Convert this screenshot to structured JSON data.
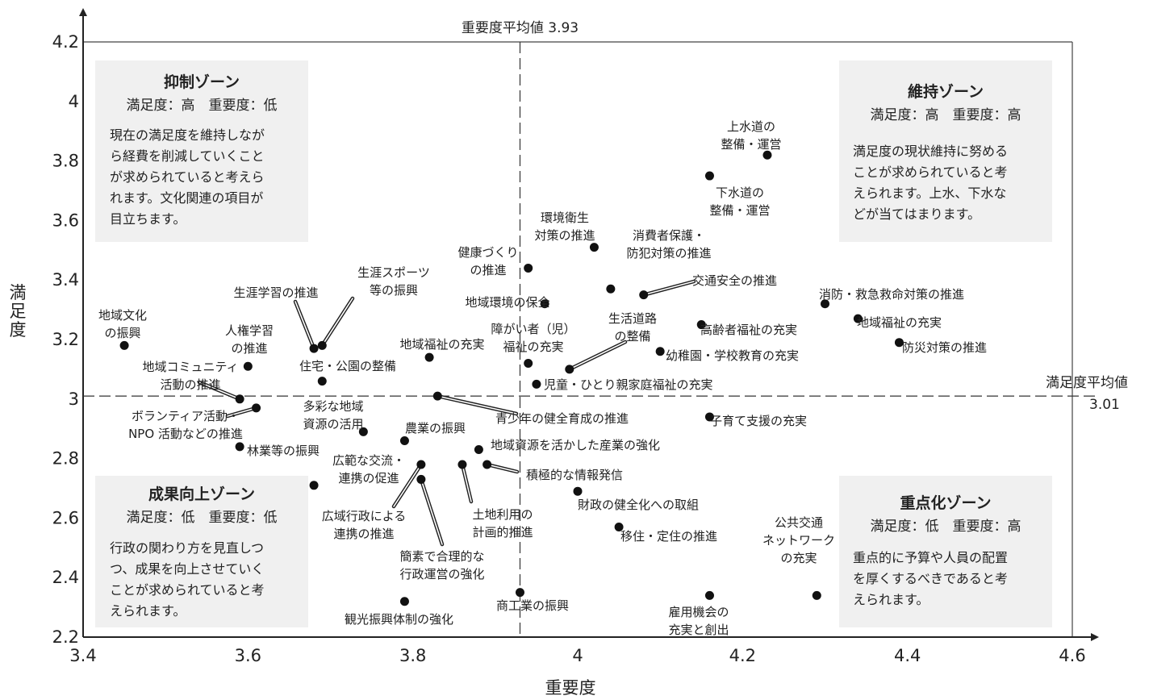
{
  "chart_data": {
    "type": "scatter",
    "xlabel": "重要度",
    "ylabel": "満足度",
    "xlim": [
      3.4,
      4.6
    ],
    "ylim": [
      2.2,
      4.2
    ],
    "xticks": [
      "3.4",
      "3.6",
      "3.8",
      "4",
      "4.2",
      "4.4",
      "4.6"
    ],
    "yticks": [
      "2.2",
      "2.4",
      "2.6",
      "2.8",
      "3",
      "3.2",
      "3.4",
      "3.6",
      "3.8",
      "4",
      "4.2"
    ],
    "averages": {
      "importance": {
        "label": "重要度平均値",
        "value_text": "3.93",
        "value": 3.93
      },
      "satisfaction": {
        "label": "満足度平均値",
        "value_text": "3.01",
        "value": 3.01
      }
    },
    "zones": [
      {
        "name": "抑制ゾーン",
        "sub": "満足度：高　重要度：低",
        "desc": [
          "現在の満足度を維持しなが",
          "ら経費を削減していくこと",
          "が求められていると考えら",
          "れます。文化関連の項目が",
          "目立ちます。"
        ]
      },
      {
        "name": "維持ゾーン",
        "sub": "満足度：高　重要度：高",
        "desc": [
          "満足度の現状維持に努める",
          "ことが求められていると考",
          "えられます。上水、下水な",
          "どが当てはまります。"
        ]
      },
      {
        "name": "成果向上ゾーン",
        "sub": "満足度：低　重要度：低",
        "desc": [
          "行政の関わり方を見直しつ",
          "つ、成果を向上させていく",
          "ことが求められていると考",
          "えられます。"
        ]
      },
      {
        "name": "重点化ゾーン",
        "sub": "満足度：低　重要度：高",
        "desc": [
          "重点的に予算や人員の配置",
          "を厚くするべきであると考",
          "えられます。"
        ]
      }
    ],
    "points": [
      {
        "label": [
          "上水道の",
          "整備・運営"
        ],
        "x": 4.23,
        "y": 3.82
      },
      {
        "label": [
          "下水道の",
          "整備・運営"
        ],
        "x": 4.16,
        "y": 3.75
      },
      {
        "label": [
          "環境衛生",
          "対策の推進"
        ],
        "x": 4.02,
        "y": 3.51
      },
      {
        "label": [
          "健康づくり",
          "の推進"
        ],
        "x": 3.94,
        "y": 3.44
      },
      {
        "label": [
          "消費者保護・",
          "防犯対策の推進"
        ],
        "x": 4.04,
        "y": 3.37
      },
      {
        "label": [
          "交通安全の推進"
        ],
        "x": 4.08,
        "y": 3.35
      },
      {
        "label": [
          "地域環境の保全"
        ],
        "x": 3.96,
        "y": 3.32
      },
      {
        "label": [
          "消防・救急救命対策の推進"
        ],
        "x": 4.3,
        "y": 3.32
      },
      {
        "label": [
          "地域福祉の充実"
        ],
        "x": 4.34,
        "y": 3.27
      },
      {
        "label": [
          "高齢者福祉の充実"
        ],
        "x": 4.15,
        "y": 3.25
      },
      {
        "label": [
          "防災対策の推進"
        ],
        "x": 4.39,
        "y": 3.19
      },
      {
        "label": [
          "幼稚園・学校教育の充実"
        ],
        "x": 4.1,
        "y": 3.16
      },
      {
        "label": [
          "生活道路",
          "の整備"
        ],
        "x": 3.99,
        "y": 3.1
      },
      {
        "label": [
          "障がい者（児）",
          "福祉の充実"
        ],
        "x": 3.94,
        "y": 3.12
      },
      {
        "label": [
          "児童・ひとり親家庭福祉の充実"
        ],
        "x": 3.95,
        "y": 3.05
      },
      {
        "label": [
          "地域福祉の充実"
        ],
        "x": 3.82,
        "y": 3.14
      },
      {
        "label": [
          "地域文化",
          "の振興"
        ],
        "x": 3.45,
        "y": 3.18
      },
      {
        "label": [
          "人権学習",
          "の推進"
        ],
        "x": 3.6,
        "y": 3.11
      },
      {
        "label": [
          "生涯学習の推進"
        ],
        "x": 3.68,
        "y": 3.17
      },
      {
        "label": [
          "生涯スポーツ",
          "等の振興"
        ],
        "x": 3.69,
        "y": 3.18
      },
      {
        "label": [
          "住宅・公園の整備"
        ],
        "x": 3.69,
        "y": 3.06
      },
      {
        "label": [
          "地域コミュニティ",
          "活動の推進"
        ],
        "x": 3.59,
        "y": 3.0
      },
      {
        "label": [
          "ボランティア活動・",
          "NPO 活動などの推進"
        ],
        "x": 3.61,
        "y": 2.97
      },
      {
        "label": [
          "多彩な地域",
          "資源の活用"
        ],
        "x": 3.74,
        "y": 2.89
      },
      {
        "label": [
          "青少年の健全育成の推進"
        ],
        "x": 3.83,
        "y": 3.01
      },
      {
        "label": [
          "子育て支援の充実"
        ],
        "x": 4.16,
        "y": 2.94
      },
      {
        "label": [
          "農業の振興"
        ],
        "x": 3.79,
        "y": 2.86
      },
      {
        "label": [
          "林業等の振興"
        ],
        "x": 3.59,
        "y": 2.84
      },
      {
        "label": [
          "地域資源を活かした産業の強化"
        ],
        "x": 3.88,
        "y": 2.83
      },
      {
        "label": [
          "広範な交流・",
          "連携の促進"
        ],
        "x": 3.68,
        "y": 2.71
      },
      {
        "label": [
          "積極的な情報発信"
        ],
        "x": 3.89,
        "y": 2.78
      },
      {
        "label": [
          "土地利用の",
          "計画的推進"
        ],
        "x": 3.86,
        "y": 2.78
      },
      {
        "label": [
          "広域行政による",
          "連携の推進"
        ],
        "x": 3.81,
        "y": 2.78
      },
      {
        "label": [
          "簡素で合理的な",
          "行政運営の強化"
        ],
        "x": 3.81,
        "y": 2.73
      },
      {
        "label": [
          "財政の健全化への取組"
        ],
        "x": 4.0,
        "y": 2.69
      },
      {
        "label": [
          "移住・定住の推進"
        ],
        "x": 4.05,
        "y": 2.57
      },
      {
        "label": [
          "公共交通",
          "ネットワーク",
          "の充実"
        ],
        "x": 4.29,
        "y": 2.34
      },
      {
        "label": [
          "商工業の振興"
        ],
        "x": 3.93,
        "y": 2.35
      },
      {
        "label": [
          "雇用機会の",
          "充実と創出"
        ],
        "x": 4.16,
        "y": 2.34
      },
      {
        "label": [
          "観光振興体制の強化"
        ],
        "x": 3.79,
        "y": 2.32
      }
    ]
  }
}
